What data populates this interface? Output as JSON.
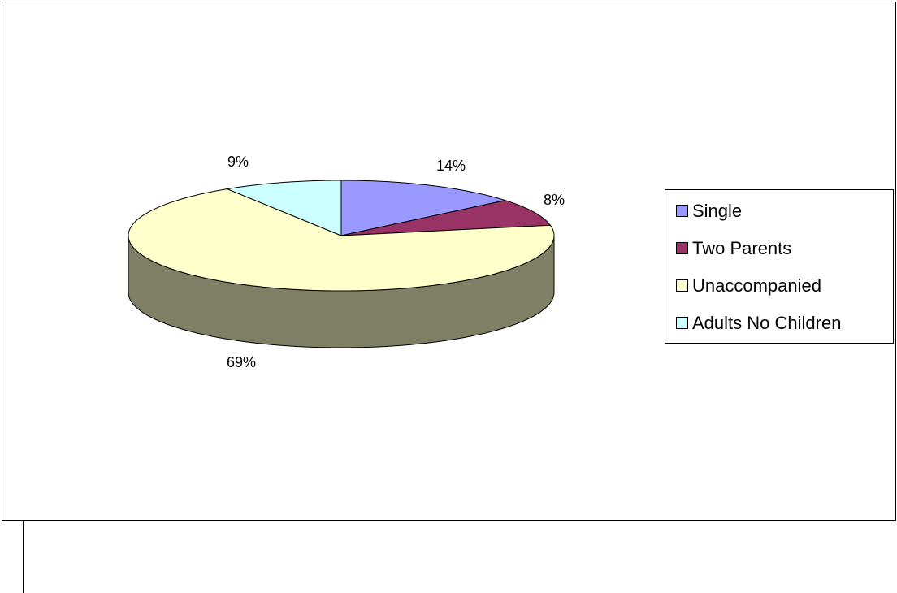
{
  "chart_data": {
    "type": "pie",
    "categories": [
      "Single",
      "Two Parents",
      "Unaccompanied",
      "Adults No Children"
    ],
    "values": [
      14,
      8,
      69,
      9
    ],
    "value_labels": [
      "14%",
      "8%",
      "69%",
      "9%"
    ],
    "colors": [
      "#9999ff",
      "#993366",
      "#ffffcc",
      "#ccffff"
    ],
    "legend": "right"
  }
}
